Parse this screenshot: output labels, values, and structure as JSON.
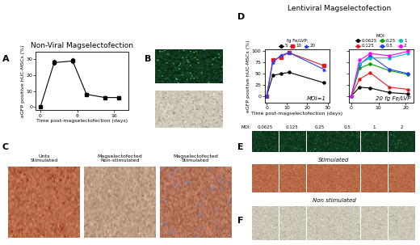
{
  "chart_data": [
    {
      "type": "line",
      "title": "Non-Viral Magselectofection",
      "x_label": "Time post-magselectofection (days)",
      "y_label": "eGFP positive hUC-MSCs (%)",
      "x": [
        0,
        3,
        7,
        10,
        14,
        17
      ],
      "values": [
        0,
        28,
        29,
        8,
        6,
        6
      ],
      "errors": [
        0.5,
        1.5,
        1.5,
        0.8,
        0.6,
        0.6
      ],
      "color": "#000000",
      "marker": "square",
      "xlim": [
        -1,
        19
      ],
      "xticks": [
        0,
        8,
        16
      ],
      "ylim": [
        -2,
        35
      ],
      "yticks": [
        0,
        10,
        20,
        30
      ],
      "grid": false
    },
    {
      "type": "line",
      "x_label": "Time post-magselectofection (days)",
      "y_label": "eGFP positive hUC-MSCs (%)",
      "legend_title": "fg Fe/LVP:",
      "legend": "top",
      "annotations": [
        "MOI=1"
      ],
      "x": [
        0,
        3,
        7,
        11,
        28
      ],
      "series": [
        {
          "name": "5",
          "color": "#000000",
          "marker": "circle",
          "values": [
            0,
            46,
            50,
            53,
            30
          ]
        },
        {
          "name": "10",
          "color": "#e41a1c",
          "marker": "square",
          "values": [
            0,
            80,
            87,
            97,
            68
          ]
        },
        {
          "name": "20",
          "color": "#1f3fff",
          "marker": "triangle",
          "values": [
            0,
            75,
            91,
            97,
            60
          ]
        }
      ],
      "xlim": [
        -1,
        31
      ],
      "xticks": [
        0,
        10,
        20,
        30
      ],
      "ylim": [
        -15,
        105
      ],
      "yticks": [
        0,
        25,
        50,
        75,
        100
      ],
      "grid": false
    },
    {
      "type": "line",
      "legend_title": "MOI:",
      "legend": "top",
      "annotations": [
        "20 fg Fe/LVP"
      ],
      "x": [
        0,
        3,
        7,
        14,
        21
      ],
      "tick_labels": "x",
      "series": [
        {
          "name": "0.0625",
          "color": "#000000",
          "marker": "circle",
          "values": [
            0,
            20,
            18,
            8,
            5
          ]
        },
        {
          "name": "0.125",
          "color": "#e41a1c",
          "marker": "circle",
          "values": [
            0,
            38,
            52,
            20,
            15
          ]
        },
        {
          "name": "0.25",
          "color": "#00a000",
          "marker": "circle",
          "values": [
            0,
            62,
            72,
            57,
            48
          ]
        },
        {
          "name": "0.5",
          "color": "#1f3fff",
          "marker": "circle",
          "values": [
            0,
            70,
            90,
            60,
            50
          ]
        },
        {
          "name": "1",
          "color": "#00bfbf",
          "marker": "circle",
          "values": [
            0,
            72,
            85,
            85,
            95
          ]
        },
        {
          "name": "2",
          "color": "#ff00ff",
          "marker": "circle",
          "values": [
            0,
            80,
            95,
            90,
            100
          ]
        }
      ],
      "xlim": [
        -1,
        23
      ],
      "xticks": [
        0,
        10,
        20
      ],
      "ylim": [
        -15,
        105
      ],
      "yticks": [
        0,
        25,
        50,
        75,
        100
      ],
      "grid": false
    }
  ],
  "figure": {
    "panel_letters": [
      "A",
      "B",
      "C",
      "D",
      "E",
      "F"
    ],
    "D_title": "Lentiviral Magselectofection",
    "C_captions": [
      "Untx\nStimulated",
      "Magselectofected\nNon-stimulated",
      "Magselectofected\nStimulated"
    ],
    "E_header": "MOI:",
    "E_columns": [
      "0.0625",
      "0.125",
      "0.25",
      "0.5",
      "1",
      "2"
    ],
    "E_row_label": "Stimulated",
    "F_row_label": "Non stimulated"
  }
}
